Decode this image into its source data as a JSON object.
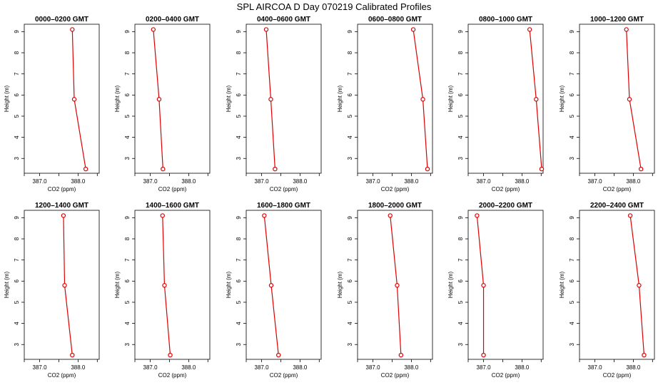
{
  "page": {
    "title": "SPL AIRCOA D  Day 070219  Calibrated Profiles"
  },
  "colors": {
    "series": "#dd0000",
    "axis": "#000000",
    "background": "#ffffff"
  },
  "chart_data": [
    {
      "type": "line",
      "title": "0000–0200 GMT",
      "xlabel": "CO2 (ppm)",
      "ylabel": "Height (m)",
      "xlim": [
        386.6,
        388.55
      ],
      "ylim": [
        2.3,
        9.35
      ],
      "xticks": [
        "387.0",
        "388.0"
      ],
      "xtick_values": [
        387.0,
        388.0
      ],
      "yticks": [
        "3",
        "4",
        "5",
        "6",
        "7",
        "8",
        "9"
      ],
      "grid": false,
      "series": [
        {
          "x": [
            387.85,
            387.9,
            388.2
          ],
          "y": [
            9.1,
            5.8,
            2.5
          ]
        }
      ]
    },
    {
      "type": "line",
      "title": "0200–0400 GMT",
      "xlabel": "CO2 (ppm)",
      "ylabel": "Height (m)",
      "xlim": [
        386.6,
        388.55
      ],
      "ylim": [
        2.3,
        9.35
      ],
      "xticks": [
        "387.0",
        "388.0"
      ],
      "xtick_values": [
        387.0,
        388.0
      ],
      "yticks": [
        "3",
        "4",
        "5",
        "6",
        "7",
        "8",
        "9"
      ],
      "grid": false,
      "series": [
        {
          "x": [
            387.08,
            387.23,
            387.33
          ],
          "y": [
            9.1,
            5.8,
            2.5
          ]
        }
      ]
    },
    {
      "type": "line",
      "title": "0400–0600 GMT",
      "xlabel": "CO2 (ppm)",
      "ylabel": "Height (m)",
      "xlim": [
        386.6,
        388.55
      ],
      "ylim": [
        2.3,
        9.35
      ],
      "xticks": [
        "387.0",
        "388.0"
      ],
      "xtick_values": [
        387.0,
        388.0
      ],
      "yticks": [
        "3",
        "4",
        "5",
        "6",
        "7",
        "8",
        "9"
      ],
      "grid": false,
      "series": [
        {
          "x": [
            387.12,
            387.24,
            387.35
          ],
          "y": [
            9.1,
            5.8,
            2.5
          ]
        }
      ]
    },
    {
      "type": "line",
      "title": "0600–0800 GMT",
      "xlabel": "CO2 (ppm)",
      "ylabel": "Height (m)",
      "xlim": [
        386.6,
        388.55
      ],
      "ylim": [
        2.3,
        9.35
      ],
      "xticks": [
        "387.0",
        "388.0"
      ],
      "xtick_values": [
        387.0,
        388.0
      ],
      "yticks": [
        "3",
        "4",
        "5",
        "6",
        "7",
        "8",
        "9"
      ],
      "grid": false,
      "series": [
        {
          "x": [
            388.05,
            388.3,
            388.42
          ],
          "y": [
            9.1,
            5.8,
            2.5
          ]
        }
      ]
    },
    {
      "type": "line",
      "title": "0800–1000 GMT",
      "xlabel": "CO2 (ppm)",
      "ylabel": "Height (m)",
      "xlim": [
        386.6,
        388.55
      ],
      "ylim": [
        2.3,
        9.35
      ],
      "xticks": [
        "387.0",
        "388.0"
      ],
      "xtick_values": [
        387.0,
        388.0
      ],
      "yticks": [
        "3",
        "4",
        "5",
        "6",
        "7",
        "8",
        "9"
      ],
      "grid": false,
      "series": [
        {
          "x": [
            388.2,
            388.37,
            388.62
          ],
          "y": [
            9.1,
            5.8,
            2.5
          ]
        }
      ]
    },
    {
      "type": "line",
      "title": "1000–1200 GMT",
      "xlabel": "CO2 (ppm)",
      "ylabel": "Height (m)",
      "xlim": [
        386.6,
        388.55
      ],
      "ylim": [
        2.3,
        9.35
      ],
      "xticks": [
        "387.0",
        "388.0"
      ],
      "xtick_values": [
        387.0,
        388.0
      ],
      "yticks": [
        "3",
        "4",
        "5",
        "6",
        "7",
        "8",
        "9"
      ],
      "grid": false,
      "series": [
        {
          "x": [
            387.82,
            387.9,
            388.2
          ],
          "y": [
            9.1,
            5.8,
            2.5
          ]
        }
      ]
    },
    {
      "type": "line",
      "title": "1200–1400 GMT",
      "xlabel": "CO2 (ppm)",
      "ylabel": "Height (m)",
      "xlim": [
        386.6,
        388.55
      ],
      "ylim": [
        2.3,
        9.35
      ],
      "xticks": [
        "387.0",
        "388.0"
      ],
      "xtick_values": [
        387.0,
        388.0
      ],
      "yticks": [
        "3",
        "4",
        "5",
        "6",
        "7",
        "8",
        "9"
      ],
      "grid": false,
      "series": [
        {
          "x": [
            387.62,
            387.65,
            387.85
          ],
          "y": [
            9.1,
            5.8,
            2.5
          ]
        }
      ]
    },
    {
      "type": "line",
      "title": "1400–1600 GMT",
      "xlabel": "CO2 (ppm)",
      "ylabel": "Height (m)",
      "xlim": [
        386.6,
        388.55
      ],
      "ylim": [
        2.3,
        9.35
      ],
      "xticks": [
        "387.0",
        "388.0"
      ],
      "xtick_values": [
        387.0,
        388.0
      ],
      "yticks": [
        "3",
        "4",
        "5",
        "6",
        "7",
        "8",
        "9"
      ],
      "grid": false,
      "series": [
        {
          "x": [
            387.32,
            387.37,
            387.52
          ],
          "y": [
            9.1,
            5.8,
            2.5
          ]
        }
      ]
    },
    {
      "type": "line",
      "title": "1600–1800 GMT",
      "xlabel": "CO2 (ppm)",
      "ylabel": "Height (m)",
      "xlim": [
        386.6,
        388.55
      ],
      "ylim": [
        2.3,
        9.35
      ],
      "xticks": [
        "387.0",
        "388.0"
      ],
      "xtick_values": [
        387.0,
        388.0
      ],
      "yticks": [
        "3",
        "4",
        "5",
        "6",
        "7",
        "8",
        "9"
      ],
      "grid": false,
      "series": [
        {
          "x": [
            387.07,
            387.25,
            387.44
          ],
          "y": [
            9.1,
            5.8,
            2.5
          ]
        }
      ]
    },
    {
      "type": "line",
      "title": "1800–2000 GMT",
      "xlabel": "CO2 (ppm)",
      "ylabel": "Height (m)",
      "xlim": [
        386.6,
        388.55
      ],
      "ylim": [
        2.3,
        9.35
      ],
      "xticks": [
        "387.0",
        "388.0"
      ],
      "xtick_values": [
        387.0,
        388.0
      ],
      "yticks": [
        "3",
        "4",
        "5",
        "6",
        "7",
        "8",
        "9"
      ],
      "grid": false,
      "series": [
        {
          "x": [
            387.45,
            387.63,
            387.73
          ],
          "y": [
            9.1,
            5.8,
            2.5
          ]
        }
      ]
    },
    {
      "type": "line",
      "title": "2000–2200 GMT",
      "xlabel": "CO2 (ppm)",
      "ylabel": "Height (m)",
      "xlim": [
        386.6,
        388.55
      ],
      "ylim": [
        2.3,
        9.35
      ],
      "xticks": [
        "387.0",
        "388.0"
      ],
      "xtick_values": [
        387.0,
        388.0
      ],
      "yticks": [
        "3",
        "4",
        "5",
        "6",
        "7",
        "8",
        "9"
      ],
      "grid": false,
      "series": [
        {
          "x": [
            386.83,
            387.0,
            387.0
          ],
          "y": [
            9.1,
            5.8,
            2.5
          ]
        }
      ]
    },
    {
      "type": "line",
      "title": "2200–2400 GMT",
      "xlabel": "CO2 (ppm)",
      "ylabel": "Height (m)",
      "xlim": [
        386.6,
        388.55
      ],
      "ylim": [
        2.3,
        9.35
      ],
      "xticks": [
        "387.0",
        "388.0"
      ],
      "xtick_values": [
        387.0,
        388.0
      ],
      "yticks": [
        "3",
        "4",
        "5",
        "6",
        "7",
        "8",
        "9"
      ],
      "grid": false,
      "series": [
        {
          "x": [
            387.92,
            388.15,
            388.28
          ],
          "y": [
            9.1,
            5.8,
            2.5
          ]
        }
      ]
    }
  ]
}
